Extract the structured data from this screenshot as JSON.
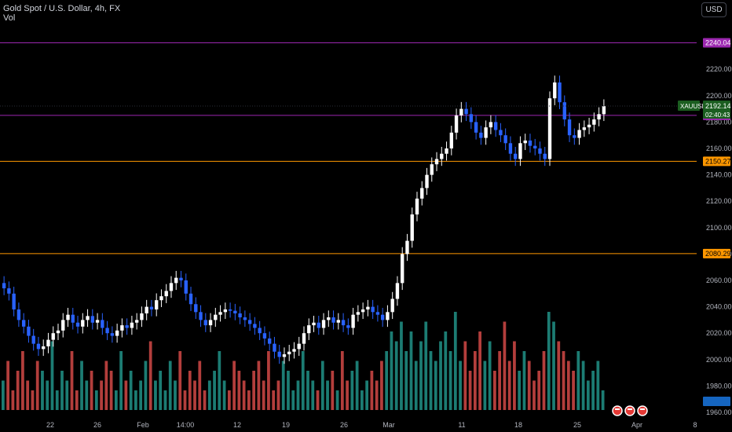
{
  "header": {
    "title": "Gold Spot / U.S. Dollar, 4h, FX",
    "volume_label": "Vol",
    "currency_button": "USD"
  },
  "colors": {
    "up": "#ffffff",
    "down": "#2962ff",
    "vol_up": "#26a69a",
    "vol_down": "#ef5350",
    "purple_line": "#9c27b0",
    "orange_line": "#ff9800",
    "current_price": "#1b5e20"
  },
  "chart_data": {
    "type": "candlestick",
    "symbol": "XAUUSD",
    "ylim": [
      1960,
      2250
    ],
    "y_ticks": [
      1960,
      1980,
      2000,
      2020,
      2040,
      2060,
      2080,
      2100,
      2120,
      2140,
      2160,
      2180,
      2200,
      2220
    ],
    "x_ticks": [
      "22",
      "26",
      "Feb",
      "14:00",
      "12",
      "19",
      "26",
      "Mar",
      "11",
      "18",
      "25",
      "Apr",
      "8"
    ],
    "grid": false,
    "horizontal_levels": [
      {
        "value": 2240.04,
        "label": "2240.04",
        "color": "purple"
      },
      {
        "value": 2185.07,
        "label": "2185.07",
        "color": "purple"
      },
      {
        "value": 2150.27,
        "label": "2150.27",
        "color": "orange"
      },
      {
        "value": 2080.29,
        "label": "2080.29",
        "color": "orange"
      }
    ],
    "current_price": {
      "symbol": "XAUUSD",
      "value": 2192.14,
      "label": "2192.14",
      "countdown": "02:40:43"
    },
    "volume_last": "32.08K",
    "close_series": [
      2054,
      2050,
      2038,
      2030,
      2025,
      2018,
      2012,
      2008,
      2010,
      2015,
      2020,
      2022,
      2030,
      2034,
      2028,
      2025,
      2030,
      2033,
      2028,
      2030,
      2024,
      2020,
      2018,
      2022,
      2026,
      2024,
      2028,
      2030,
      2035,
      2040,
      2038,
      2045,
      2048,
      2052,
      2058,
      2062,
      2060,
      2050,
      2042,
      2036,
      2030,
      2026,
      2030,
      2034,
      2036,
      2038,
      2037,
      2035,
      2032,
      2030,
      2027,
      2024,
      2020,
      2016,
      2012,
      2006,
      2002,
      2004,
      2006,
      2008,
      2012,
      2020,
      2026,
      2028,
      2024,
      2030,
      2032,
      2028,
      2030,
      2026,
      2024,
      2034,
      2036,
      2038,
      2040,
      2036,
      2034,
      2030,
      2036,
      2046,
      2058,
      2080,
      2090,
      2110,
      2122,
      2130,
      2140,
      2148,
      2152,
      2156,
      2160,
      2172,
      2185,
      2190,
      2186,
      2180,
      2172,
      2168,
      2176,
      2180,
      2174,
      2170,
      2164,
      2156,
      2152,
      2164,
      2166,
      2162,
      2160,
      2156,
      2152,
      2198,
      2210,
      2195,
      2182,
      2170,
      2168,
      2174,
      2176,
      2178,
      2182,
      2186,
      2192
    ]
  },
  "volume_bars": [
    0.3,
    0.5,
    0.2,
    0.4,
    0.6,
    0.3,
    0.2,
    0.5,
    0.4,
    0.3,
    0.7,
    0.2,
    0.4,
    0.3,
    0.6,
    0.2,
    0.5,
    0.3,
    0.4,
    0.2,
    0.3,
    0.5,
    0.4,
    0.2,
    0.6,
    0.3,
    0.4,
    0.2,
    0.3,
    0.5,
    0.7,
    0.3,
    0.4,
    0.2,
    0.5,
    0.3,
    0.6,
    0.2,
    0.4,
    0.3,
    0.5,
    0.2,
    0.3,
    0.4,
    0.6,
    0.3,
    0.2,
    0.5,
    0.4,
    0.3,
    0.2,
    0.4,
    0.5,
    0.3,
    0.6,
    0.2,
    0.3,
    0.5,
    0.4,
    0.2,
    0.3,
    0.6,
    0.4,
    0.3,
    0.2,
    0.5,
    0.3,
    0.4,
    0.2,
    0.6,
    0.3,
    0.4,
    0.5,
    0.2,
    0.3,
    0.4,
    0.3,
    0.5,
    0.6,
    0.8,
    0.7,
    0.9,
    0.6,
    0.8,
    0.5,
    0.7,
    0.9,
    0.6,
    0.5,
    0.7,
    0.8,
    0.6,
    1.0,
    0.5,
    0.7,
    0.4,
    0.6,
    0.8,
    0.5,
    0.7,
    0.4,
    0.6,
    0.9,
    0.5,
    0.7,
    0.4,
    0.6,
    0.5,
    0.3,
    0.4,
    0.6,
    1.0,
    0.9,
    0.7,
    0.6,
    0.5,
    0.4,
    0.6,
    0.5,
    0.3,
    0.4,
    0.5,
    0.2
  ],
  "candle_range": 0.52,
  "footer_icons": [
    "flag-icon-us",
    "flag-icon-us",
    "flag-icon-us"
  ]
}
